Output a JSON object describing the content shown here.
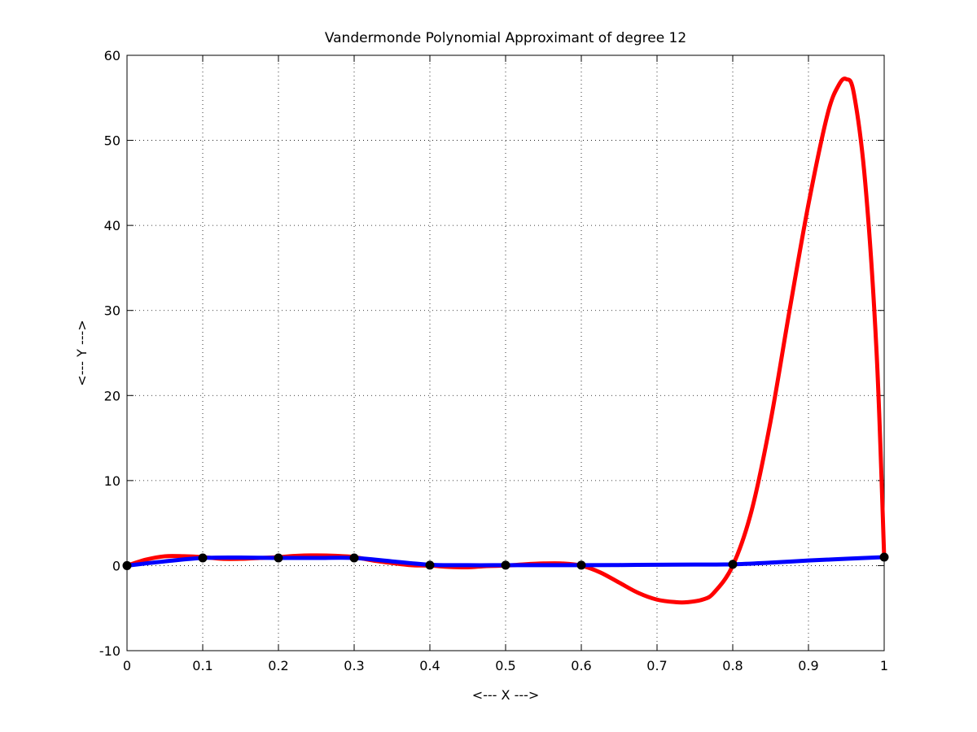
{
  "chart_data": {
    "type": "line",
    "title": "Vandermonde Polynomial Approximant of degree 12",
    "xlabel": "<--- X --->",
    "ylabel": "<--- Y --->",
    "xlim": [
      0,
      1
    ],
    "ylim": [
      -10,
      60
    ],
    "xticks": [
      0,
      0.1,
      0.2,
      0.3,
      0.4,
      0.5,
      0.6,
      0.7,
      0.8,
      0.9,
      1
    ],
    "xtick_labels": [
      "0",
      "0.1",
      "0.2",
      "0.3",
      "0.4",
      "0.5",
      "0.6",
      "0.7",
      "0.8",
      "0.9",
      "1"
    ],
    "yticks": [
      -10,
      0,
      10,
      20,
      30,
      40,
      50,
      60
    ],
    "ytick_labels": [
      "-10",
      "0",
      "10",
      "20",
      "30",
      "40",
      "50",
      "60"
    ],
    "grid": true,
    "series": [
      {
        "color": "#ff0000",
        "style": "solid",
        "x": [
          0,
          0.025,
          0.05,
          0.075,
          0.1,
          0.125,
          0.15,
          0.175,
          0.2,
          0.225,
          0.25,
          0.275,
          0.3,
          0.325,
          0.35,
          0.375,
          0.4,
          0.425,
          0.45,
          0.475,
          0.5,
          0.525,
          0.55,
          0.575,
          0.6,
          0.625,
          0.65,
          0.675,
          0.7,
          0.725,
          0.74,
          0.76,
          0.775,
          0.8,
          0.825,
          0.85,
          0.875,
          0.9,
          0.925,
          0.94,
          0.95,
          0.96,
          0.975,
          0.99,
          1
        ],
        "y": [
          0,
          0.7,
          1.1,
          1.1,
          1.0,
          0.8,
          0.8,
          0.9,
          1.0,
          1.15,
          1.2,
          1.15,
          1.0,
          0.6,
          0.3,
          0.05,
          0,
          -0.15,
          -0.2,
          -0.05,
          0,
          0.15,
          0.25,
          0.25,
          0,
          -0.8,
          -2.0,
          -3.2,
          -4.0,
          -4.3,
          -4.3,
          -4.0,
          -3.2,
          0,
          6.5,
          17.0,
          30.0,
          42.5,
          53.0,
          56.5,
          57.2,
          55.5,
          45.0,
          25.0,
          1.0
        ]
      },
      {
        "color": "#0000ff",
        "style": "solid",
        "x": [
          0,
          0.05,
          0.1,
          0.15,
          0.2,
          0.25,
          0.3,
          0.35,
          0.4,
          0.45,
          0.5,
          0.55,
          0.6,
          0.65,
          0.7,
          0.75,
          0.8,
          0.85,
          0.9,
          0.95,
          1
        ],
        "y": [
          0,
          0.5,
          0.9,
          0.95,
          0.9,
          0.9,
          0.9,
          0.5,
          0.1,
          0.05,
          0.05,
          0.05,
          0.05,
          0.07,
          0.1,
          0.12,
          0.15,
          0.35,
          0.6,
          0.8,
          1.0
        ]
      }
    ],
    "markers": {
      "color": "#000000",
      "x": [
        0,
        0.1,
        0.2,
        0.3,
        0.4,
        0.5,
        0.6,
        0.8,
        1.0
      ],
      "y": [
        0,
        0.9,
        0.9,
        0.9,
        0.05,
        0.05,
        0.05,
        0.15,
        1.0
      ]
    }
  }
}
